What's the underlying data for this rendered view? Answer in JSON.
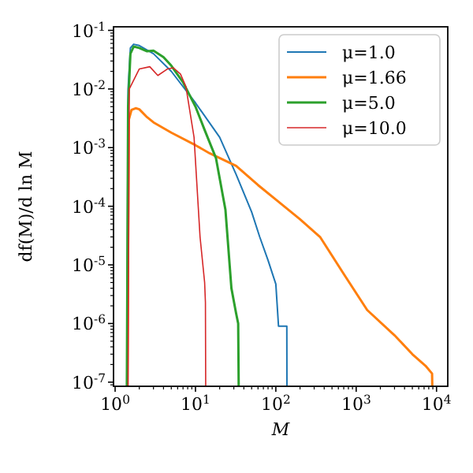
{
  "chart_data": {
    "type": "line",
    "xlabel": "M",
    "ylabel": "df(M)/d ln M",
    "log": "xy",
    "legend": "top right",
    "grid": false,
    "line_style": "solid",
    "marker": "none",
    "xlim": [
      0.955,
      13800
    ],
    "ylim": [
      8.5e-08,
      0.115
    ],
    "xticks": [
      {
        "value": 1,
        "label": "10$^{0}$"
      },
      {
        "value": 10,
        "label": "10$^{1}$"
      },
      {
        "value": 100,
        "label": "10$^{2}$"
      },
      {
        "value": 1000,
        "label": "10$^{3}$"
      },
      {
        "value": 10000,
        "label": "10$^{4}$"
      },
      {
        "value": 2,
        "label": null
      },
      {
        "value": 3,
        "label": null
      },
      {
        "value": 4,
        "label": null
      },
      {
        "value": 5,
        "label": null
      },
      {
        "value": 6,
        "label": null
      },
      {
        "value": 7,
        "label": null
      },
      {
        "value": 8,
        "label": null
      },
      {
        "value": 9,
        "label": null
      },
      {
        "value": 20,
        "label": null
      },
      {
        "value": 30,
        "label": null
      },
      {
        "value": 40,
        "label": null
      },
      {
        "value": 50,
        "label": null
      },
      {
        "value": 60,
        "label": null
      },
      {
        "value": 70,
        "label": null
      },
      {
        "value": 80,
        "label": null
      },
      {
        "value": 90,
        "label": null
      },
      {
        "value": 200,
        "label": null
      },
      {
        "value": 300,
        "label": null
      },
      {
        "value": 400,
        "label": null
      },
      {
        "value": 500,
        "label": null
      },
      {
        "value": 600,
        "label": null
      },
      {
        "value": 700,
        "label": null
      },
      {
        "value": 800,
        "label": null
      },
      {
        "value": 900,
        "label": null
      },
      {
        "value": 2000,
        "label": null
      },
      {
        "value": 3000,
        "label": null
      },
      {
        "value": 4000,
        "label": null
      },
      {
        "value": 5000,
        "label": null
      },
      {
        "value": 6000,
        "label": null
      },
      {
        "value": 7000,
        "label": null
      },
      {
        "value": 8000,
        "label": null
      },
      {
        "value": 9000,
        "label": null
      }
    ],
    "yticks": [
      {
        "value": 1e-07,
        "label": "10$^{-7}$"
      },
      {
        "value": 1e-06,
        "label": "10$^{-6}$"
      },
      {
        "value": 1e-05,
        "label": "10$^{-5}$"
      },
      {
        "value": 0.0001,
        "label": "10$^{-4}$"
      },
      {
        "value": 0.001,
        "label": "10$^{-3}$"
      },
      {
        "value": 0.01,
        "label": "10$^{-2}$"
      },
      {
        "value": 0.1,
        "label": "10$^{-1}$"
      },
      {
        "value": 9e-08,
        "label": null
      },
      {
        "value": 2e-07,
        "label": null
      },
      {
        "value": 3e-07,
        "label": null
      },
      {
        "value": 4e-07,
        "label": null
      },
      {
        "value": 5e-07,
        "label": null
      },
      {
        "value": 6e-07,
        "label": null
      },
      {
        "value": 7e-07,
        "label": null
      },
      {
        "value": 8e-07,
        "label": null
      },
      {
        "value": 9e-07,
        "label": null
      },
      {
        "value": 2e-06,
        "label": null
      },
      {
        "value": 3e-06,
        "label": null
      },
      {
        "value": 4e-06,
        "label": null
      },
      {
        "value": 5e-06,
        "label": null
      },
      {
        "value": 6e-06,
        "label": null
      },
      {
        "value": 7e-06,
        "label": null
      },
      {
        "value": 8e-06,
        "label": null
      },
      {
        "value": 9e-06,
        "label": null
      },
      {
        "value": 2e-05,
        "label": null
      },
      {
        "value": 3e-05,
        "label": null
      },
      {
        "value": 4e-05,
        "label": null
      },
      {
        "value": 5e-05,
        "label": null
      },
      {
        "value": 6e-05,
        "label": null
      },
      {
        "value": 7e-05,
        "label": null
      },
      {
        "value": 8e-05,
        "label": null
      },
      {
        "value": 9e-05,
        "label": null
      },
      {
        "value": 0.0002,
        "label": null
      },
      {
        "value": 0.0003,
        "label": null
      },
      {
        "value": 0.0004,
        "label": null
      },
      {
        "value": 0.0005,
        "label": null
      },
      {
        "value": 0.0006,
        "label": null
      },
      {
        "value": 0.0007,
        "label": null
      },
      {
        "value": 0.0008,
        "label": null
      },
      {
        "value": 0.0009,
        "label": null
      },
      {
        "value": 0.002,
        "label": null
      },
      {
        "value": 0.003,
        "label": null
      },
      {
        "value": 0.004,
        "label": null
      },
      {
        "value": 0.005,
        "label": null
      },
      {
        "value": 0.006,
        "label": null
      },
      {
        "value": 0.007,
        "label": null
      },
      {
        "value": 0.008,
        "label": null
      },
      {
        "value": 0.009,
        "label": null
      },
      {
        "value": 0.02,
        "label": null
      },
      {
        "value": 0.03,
        "label": null
      },
      {
        "value": 0.04,
        "label": null
      },
      {
        "value": 0.05,
        "label": null
      },
      {
        "value": 0.06,
        "label": null
      },
      {
        "value": 0.07,
        "label": null
      },
      {
        "value": 0.08,
        "label": null
      },
      {
        "value": 0.09,
        "label": null
      }
    ],
    "series": [
      {
        "name": "μ=1.0",
        "color": "#1f77b4",
        "x": [
          1.4,
          1.45,
          1.55,
          1.7,
          2,
          3,
          5,
          10,
          20,
          32,
          50,
          63,
          80,
          100,
          108,
          137,
          137.5
        ],
        "values": [
          8.6e-08,
          0.01,
          0.05,
          0.058,
          0.055,
          0.04,
          0.02,
          0.0058,
          0.0015,
          0.00035,
          8e-05,
          3e-05,
          1.2e-05,
          4.7e-06,
          9e-07,
          9e-07,
          8.6e-08
        ]
      },
      {
        "name": "μ=1.66",
        "color": "#ff7f0e",
        "x": [
          1.42,
          1.48,
          1.6,
          1.8,
          2,
          2.5,
          3,
          5,
          10,
          15,
          32,
          60,
          100,
          200,
          355,
          700,
          1370,
          3000,
          5000,
          7300,
          8800,
          8850
        ],
        "values": [
          8.6e-08,
          0.003,
          0.0044,
          0.0047,
          0.0045,
          0.0033,
          0.0027,
          0.0018,
          0.0011,
          0.0008,
          0.00049,
          0.00023,
          0.00013,
          6e-05,
          3e-05,
          7e-06,
          1.7e-06,
          6.3e-07,
          3e-07,
          1.9e-07,
          1.4e-07,
          8.6e-08
        ]
      },
      {
        "name": "μ=5.0",
        "color": "#2ca02c",
        "x": [
          1.4,
          1.45,
          1.55,
          1.7,
          2,
          2.5,
          3,
          4,
          5,
          7,
          10,
          13,
          18,
          23.6,
          28,
          32,
          34,
          34.5
        ],
        "values": [
          8.6e-08,
          0.005,
          0.04,
          0.053,
          0.05,
          0.044,
          0.045,
          0.035,
          0.025,
          0.013,
          0.005,
          0.002,
          0.00066,
          8.7e-05,
          4e-06,
          1.5e-06,
          1e-06,
          8.6e-08
        ]
      },
      {
        "name": "μ=10.0",
        "color": "#d62728",
        "x": [
          1.45,
          1.5,
          2,
          2.7,
          3.4,
          4.5,
          5.3,
          6.5,
          7.6,
          9.6,
          11.4,
          13,
          13.3,
          13.4
        ],
        "values": [
          8.6e-08,
          0.01,
          0.022,
          0.024,
          0.017,
          0.022,
          0.023,
          0.018,
          0.011,
          0.0015,
          3e-05,
          5e-06,
          2.3e-06,
          8.6e-08
        ]
      }
    ]
  }
}
